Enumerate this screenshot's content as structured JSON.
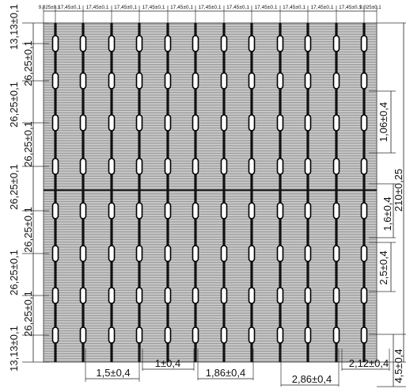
{
  "top_dims": {
    "edge_left": "9,025±0,1",
    "edge_right": "9,025±0,1",
    "pitch": "17,45±0,1",
    "pitch_count": 11
  },
  "left_dims": [
    "13,13±0,1",
    "26,25±0,1",
    "26,25±0,1",
    "26,25±0,1",
    "26,25±0,1",
    "26,25±0,1",
    "26,25±0,1",
    "26,25±0,1",
    "13,13±0,1"
  ],
  "right_dims": {
    "pad_length": "1,06±0,4",
    "total_height": "210±0,25",
    "mid_gap": "1,6±0,4",
    "segment": "2,5±0,4",
    "bottom_gap": "4,5±0,4"
  },
  "bottom_dims": {
    "a": "1,5±0,4",
    "b": "1±0,4",
    "c": "1,86±0,4",
    "d": "2,86±0,4",
    "e": "2,12±0,4"
  },
  "colors": {
    "cell_fill": "#c9c9c9",
    "finger_line": "#8a8a8a",
    "busbar": "#111111",
    "pad_fill": "#ffffff"
  }
}
